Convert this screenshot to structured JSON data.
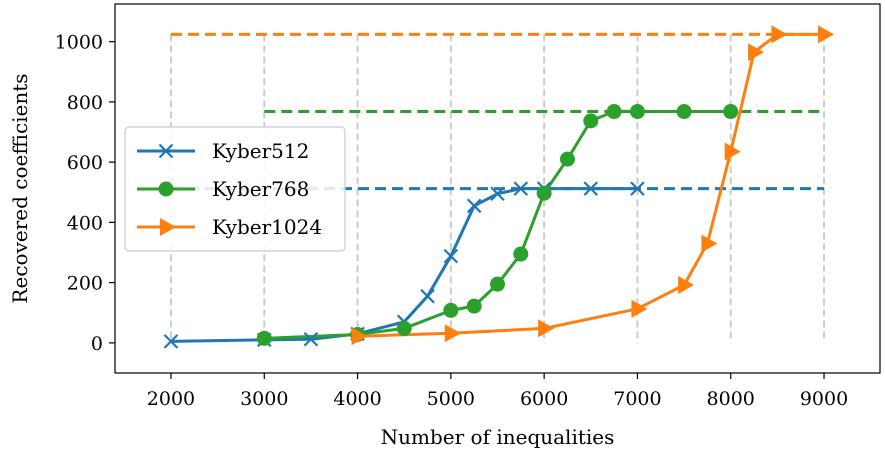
{
  "chart_data": {
    "type": "line",
    "title": "",
    "xlabel": "Number of inequalities",
    "ylabel": "Recovered coefficients",
    "xlim": [
      1400,
      9600
    ],
    "ylim": [
      -100,
      1125
    ],
    "xticks": [
      2000,
      3000,
      4000,
      5000,
      6000,
      7000,
      8000,
      9000
    ],
    "yticks": [
      0,
      200,
      400,
      600,
      800,
      1000
    ],
    "grid": "x-dashed",
    "vertical_dashed_lines": [
      2000,
      3000,
      4000,
      5000,
      6000,
      7000,
      8000,
      9000
    ],
    "legend_position": "center-left",
    "series": [
      {
        "name": "Kyber512",
        "color": "#1f77b4",
        "marker": "x",
        "reference_level": 512,
        "reference_x_range": [
          2000,
          9000
        ],
        "points": [
          [
            2000,
            5
          ],
          [
            3000,
            10
          ],
          [
            3500,
            12
          ],
          [
            4000,
            30
          ],
          [
            4500,
            70
          ],
          [
            4750,
            155
          ],
          [
            5000,
            288
          ],
          [
            5250,
            455
          ],
          [
            5500,
            495
          ],
          [
            5750,
            512
          ],
          [
            6000,
            512
          ],
          [
            6500,
            512
          ],
          [
            7000,
            512
          ]
        ]
      },
      {
        "name": "Kyber768",
        "color": "#2ca02c",
        "marker": "o",
        "reference_level": 768,
        "reference_x_range": [
          3000,
          9000
        ],
        "points": [
          [
            3000,
            15
          ],
          [
            4000,
            28
          ],
          [
            4500,
            48
          ],
          [
            5000,
            108
          ],
          [
            5250,
            122
          ],
          [
            5500,
            195
          ],
          [
            5750,
            295
          ],
          [
            6000,
            497
          ],
          [
            6250,
            610
          ],
          [
            6500,
            737
          ],
          [
            6750,
            768
          ],
          [
            7000,
            768
          ],
          [
            7500,
            768
          ],
          [
            8000,
            768
          ]
        ]
      },
      {
        "name": "Kyber1024",
        "color": "#ff7f0e",
        "marker": ">",
        "reference_level": 1024,
        "reference_x_range": [
          2000,
          9000
        ],
        "points": [
          [
            4000,
            22
          ],
          [
            5000,
            32
          ],
          [
            6000,
            48
          ],
          [
            7000,
            113
          ],
          [
            7500,
            192
          ],
          [
            7750,
            330
          ],
          [
            8000,
            635
          ],
          [
            8250,
            965
          ],
          [
            8500,
            1024
          ],
          [
            9000,
            1024
          ]
        ]
      }
    ]
  }
}
